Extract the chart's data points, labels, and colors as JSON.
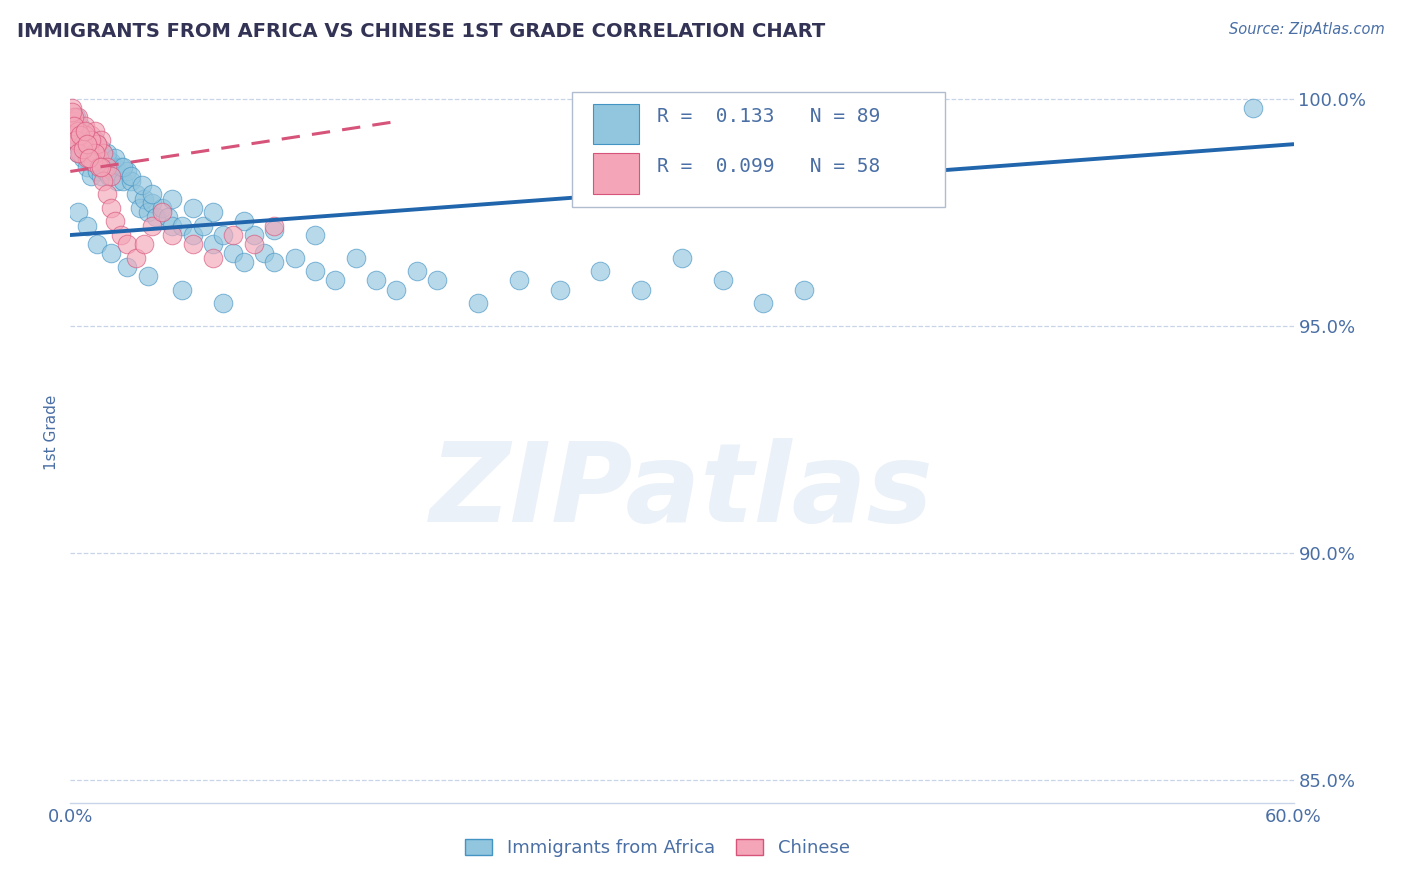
{
  "title": "IMMIGRANTS FROM AFRICA VS CHINESE 1ST GRADE CORRELATION CHART",
  "source": "Source: ZipAtlas.com",
  "ylabel": "1st Grade",
  "legend_labels": [
    "Immigrants from Africa",
    "Chinese"
  ],
  "legend_R": [
    0.133,
    0.099
  ],
  "legend_N": [
    89,
    58
  ],
  "xlim": [
    0.0,
    0.6
  ],
  "ylim": [
    0.845,
    1.008
  ],
  "yticks": [
    0.85,
    0.9,
    0.95,
    1.0
  ],
  "ytick_labels": [
    "85.0%",
    "90.0%",
    "95.0%",
    "100.0%"
  ],
  "xticks": [
    0.0,
    0.6
  ],
  "xtick_labels": [
    "0.0%",
    "60.0%"
  ],
  "blue_color": "#92c5de",
  "pink_color": "#f4a6b8",
  "blue_edge_color": "#4393c3",
  "pink_edge_color": "#d6537a",
  "blue_line_color": "#2166ac",
  "pink_line_color": "#d6537a",
  "title_color": "#333355",
  "axis_label_color": "#4a6fa5",
  "tick_color": "#4a6fa5",
  "grid_color": "#c8d4e8",
  "watermark": "ZIPatlas",
  "blue_scatter_x": [
    0.002,
    0.003,
    0.004,
    0.005,
    0.006,
    0.007,
    0.008,
    0.009,
    0.01,
    0.011,
    0.012,
    0.013,
    0.014,
    0.015,
    0.016,
    0.017,
    0.018,
    0.019,
    0.02,
    0.021,
    0.022,
    0.023,
    0.025,
    0.026,
    0.028,
    0.03,
    0.032,
    0.034,
    0.036,
    0.038,
    0.04,
    0.042,
    0.045,
    0.048,
    0.05,
    0.055,
    0.06,
    0.065,
    0.07,
    0.075,
    0.08,
    0.085,
    0.09,
    0.095,
    0.1,
    0.11,
    0.12,
    0.13,
    0.14,
    0.15,
    0.16,
    0.17,
    0.18,
    0.2,
    0.22,
    0.24,
    0.26,
    0.28,
    0.3,
    0.32,
    0.34,
    0.36,
    0.003,
    0.005,
    0.007,
    0.009,
    0.012,
    0.015,
    0.018,
    0.022,
    0.026,
    0.03,
    0.035,
    0.04,
    0.05,
    0.06,
    0.07,
    0.085,
    0.1,
    0.12,
    0.004,
    0.008,
    0.013,
    0.02,
    0.028,
    0.038,
    0.055,
    0.075,
    0.58
  ],
  "blue_scatter_y": [
    0.99,
    0.993,
    0.988,
    0.992,
    0.987,
    0.99,
    0.985,
    0.988,
    0.983,
    0.986,
    0.99,
    0.984,
    0.988,
    0.983,
    0.986,
    0.984,
    0.987,
    0.983,
    0.986,
    0.984,
    0.985,
    0.982,
    0.985,
    0.982,
    0.984,
    0.982,
    0.979,
    0.976,
    0.978,
    0.975,
    0.977,
    0.974,
    0.976,
    0.974,
    0.972,
    0.972,
    0.97,
    0.972,
    0.968,
    0.97,
    0.966,
    0.964,
    0.97,
    0.966,
    0.964,
    0.965,
    0.962,
    0.96,
    0.965,
    0.96,
    0.958,
    0.962,
    0.96,
    0.955,
    0.96,
    0.958,
    0.962,
    0.958,
    0.965,
    0.96,
    0.955,
    0.958,
    0.996,
    0.994,
    0.992,
    0.99,
    0.991,
    0.989,
    0.988,
    0.987,
    0.985,
    0.983,
    0.981,
    0.979,
    0.978,
    0.976,
    0.975,
    0.973,
    0.971,
    0.97,
    0.975,
    0.972,
    0.968,
    0.966,
    0.963,
    0.961,
    0.958,
    0.955,
    0.998
  ],
  "pink_scatter_x": [
    0.001,
    0.002,
    0.003,
    0.004,
    0.005,
    0.006,
    0.007,
    0.008,
    0.009,
    0.01,
    0.011,
    0.012,
    0.013,
    0.014,
    0.015,
    0.016,
    0.018,
    0.02,
    0.001,
    0.003,
    0.005,
    0.007,
    0.009,
    0.011,
    0.013,
    0.002,
    0.004,
    0.006,
    0.008,
    0.01,
    0.012,
    0.014,
    0.016,
    0.018,
    0.02,
    0.022,
    0.025,
    0.028,
    0.032,
    0.036,
    0.04,
    0.045,
    0.05,
    0.06,
    0.07,
    0.08,
    0.09,
    0.1,
    0.001,
    0.002,
    0.003,
    0.004,
    0.005,
    0.006,
    0.007,
    0.008,
    0.009,
    0.015
  ],
  "pink_scatter_y": [
    0.998,
    0.995,
    0.992,
    0.996,
    0.993,
    0.99,
    0.994,
    0.991,
    0.988,
    0.992,
    0.989,
    0.993,
    0.99,
    0.987,
    0.991,
    0.988,
    0.985,
    0.983,
    0.994,
    0.991,
    0.988,
    0.992,
    0.989,
    0.986,
    0.99,
    0.996,
    0.993,
    0.99,
    0.987,
    0.991,
    0.988,
    0.985,
    0.982,
    0.979,
    0.976,
    0.973,
    0.97,
    0.968,
    0.965,
    0.968,
    0.972,
    0.975,
    0.97,
    0.968,
    0.965,
    0.97,
    0.968,
    0.972,
    0.997,
    0.994,
    0.991,
    0.988,
    0.992,
    0.989,
    0.993,
    0.99,
    0.987,
    0.985
  ],
  "blue_line_x0": 0.0,
  "blue_line_x1": 0.6,
  "blue_line_y0": 0.97,
  "blue_line_y1": 0.99,
  "pink_line_x0": 0.0,
  "pink_line_x1": 0.16,
  "pink_line_y0": 0.984,
  "pink_line_y1": 0.995
}
